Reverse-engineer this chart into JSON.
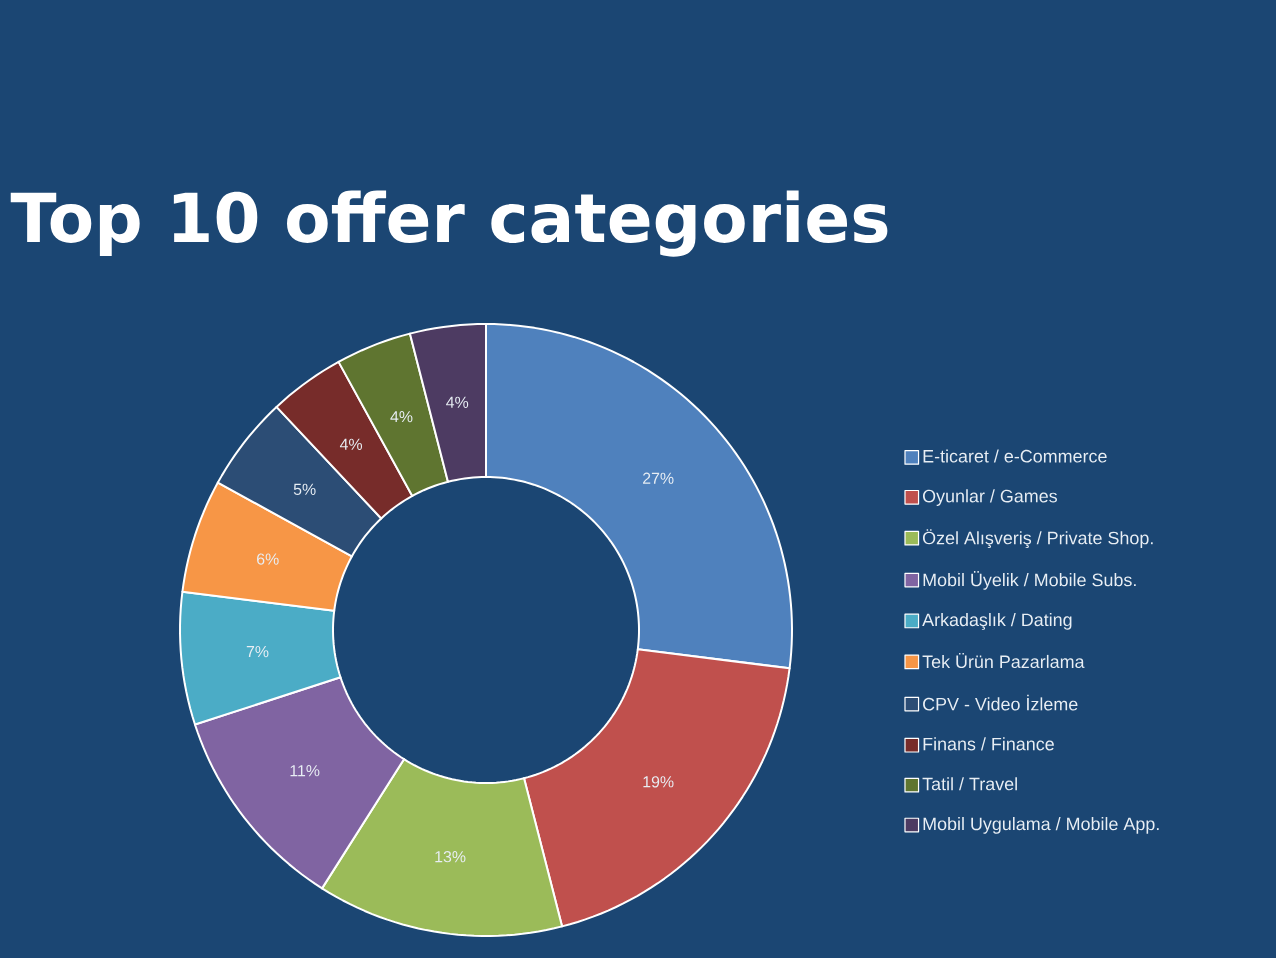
{
  "chart_data": {
    "type": "donut",
    "title": "Top 10 offer categories",
    "categories": [
      "E-ticaret / e-Commerce",
      "Oyunlar / Games",
      "Özel Alışveriş / Private Shop.",
      "Mobil Üyelik / Mobile Subs.",
      "Arkadaşlık / Dating",
      "Tek Ürün Pazarlama",
      "CPV - Video İzleme",
      "Finans / Finance",
      "Tatil / Travel",
      "Mobil Uygulama / Mobile App."
    ],
    "values": [
      27,
      19,
      13,
      11,
      7,
      6,
      5,
      4,
      4,
      4
    ],
    "colors": [
      "#4f81bd",
      "#c0504d",
      "#9bbb59",
      "#8064a2",
      "#4bacc6",
      "#f79646",
      "#2c4d75",
      "#772c2a",
      "#5f7530",
      "#4d3b62"
    ],
    "value_labels": [
      "27%",
      "19%",
      "13%",
      "11%",
      "7%",
      "6%",
      "5%",
      "4%",
      "4%",
      "4%"
    ],
    "legend": "right"
  }
}
